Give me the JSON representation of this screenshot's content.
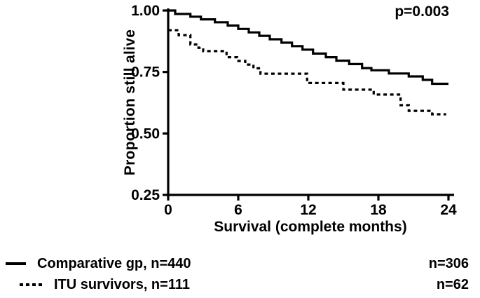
{
  "chart_data": {
    "type": "line",
    "subtype": "kaplan-meier-step",
    "title": "",
    "xlabel": "Survival (complete months)",
    "ylabel": "Proportion still alive",
    "xlim": [
      0,
      24
    ],
    "ylim": [
      0.25,
      1.0
    ],
    "xticks": [
      0,
      6,
      12,
      18,
      24
    ],
    "xtick_labels": [
      "0",
      "6",
      "12",
      "18",
      "24"
    ],
    "yticks": [
      1.0,
      0.75,
      0.5,
      0.25
    ],
    "ytick_labels": [
      "1.00",
      "0.75",
      "0.50",
      "0.25"
    ],
    "grid": false,
    "legend_position": "bottom-left",
    "annotation": {
      "text": "p=0.003",
      "position": "top-right"
    },
    "line_color": "#000000",
    "series": [
      {
        "name": "Comparative gp, n=440",
        "style": "solid",
        "color": "#000000",
        "n_at_24_months": "n=306",
        "start_value": 1.0,
        "end_month": 24,
        "steps": [
          [
            0.6,
            0.986
          ],
          [
            1.9,
            0.975
          ],
          [
            2.8,
            0.964
          ],
          [
            4.0,
            0.952
          ],
          [
            5.1,
            0.939
          ],
          [
            6.0,
            0.925
          ],
          [
            6.9,
            0.911
          ],
          [
            7.8,
            0.897
          ],
          [
            8.7,
            0.883
          ],
          [
            9.7,
            0.869
          ],
          [
            10.6,
            0.855
          ],
          [
            11.5,
            0.841
          ],
          [
            12.4,
            0.825
          ],
          [
            13.5,
            0.81
          ],
          [
            14.4,
            0.796
          ],
          [
            15.5,
            0.782
          ],
          [
            16.6,
            0.766
          ],
          [
            17.4,
            0.757
          ],
          [
            18.9,
            0.744
          ],
          [
            20.6,
            0.732
          ],
          [
            21.8,
            0.718
          ],
          [
            22.6,
            0.702
          ]
        ]
      },
      {
        "name": "ITU survivors, n=111",
        "style": "dashed",
        "color": "#000000",
        "n_at_24_months": "n=62",
        "start_value": 0.92,
        "end_month": 23.8,
        "steps": [
          [
            0.9,
            0.9
          ],
          [
            1.9,
            0.862
          ],
          [
            2.6,
            0.848
          ],
          [
            3.0,
            0.835
          ],
          [
            5.0,
            0.81
          ],
          [
            5.9,
            0.795
          ],
          [
            6.6,
            0.78
          ],
          [
            7.3,
            0.765
          ],
          [
            7.9,
            0.743
          ],
          [
            11.9,
            0.705
          ],
          [
            15.0,
            0.678
          ],
          [
            17.6,
            0.658
          ],
          [
            19.9,
            0.615
          ],
          [
            20.6,
            0.592
          ],
          [
            22.6,
            0.578
          ]
        ]
      }
    ]
  }
}
